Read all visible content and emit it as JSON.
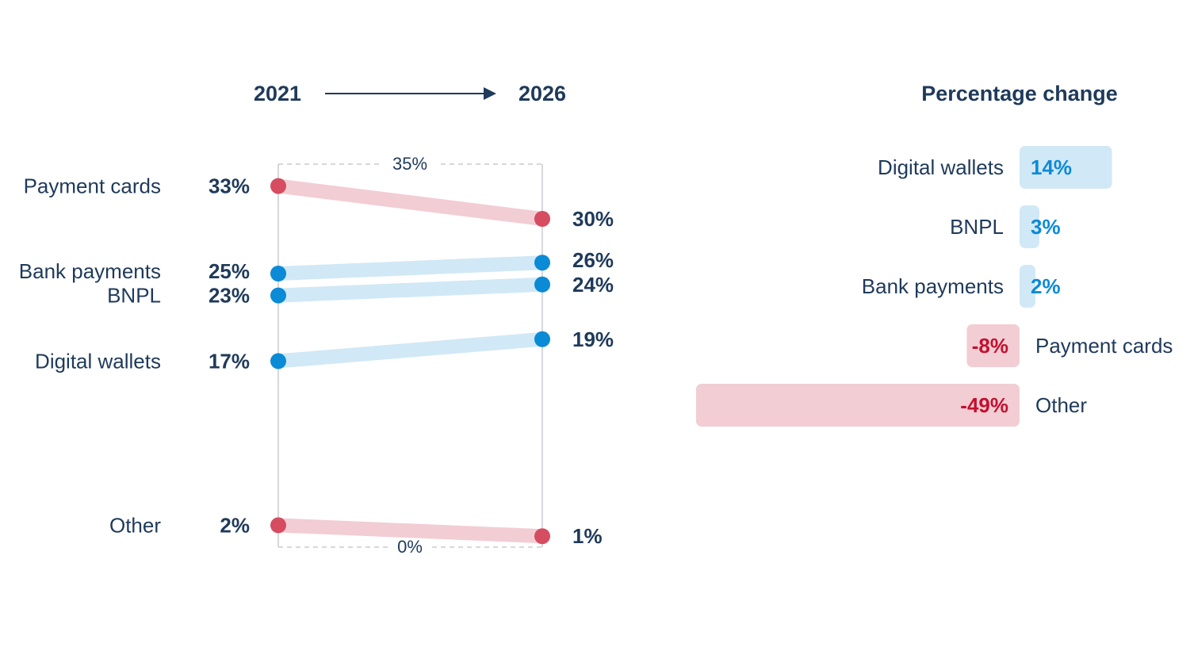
{
  "header": {
    "start_year": "2021",
    "end_year": "2026",
    "change_title": "Percentage change"
  },
  "colors": {
    "decrease_dot": "#d64c61",
    "decrease_band": "#f2cdd4",
    "decrease_text": "#c3102f",
    "increase_dot": "#0b8ad6",
    "increase_band": "#d1e8f6",
    "increase_text": "#0b8ad6",
    "text": "#1f3a5a"
  },
  "chart_data": [
    {
      "type": "slope",
      "title": "",
      "x": [
        "2021",
        "2026"
      ],
      "ylim": [
        0,
        35
      ],
      "axis_top_label": "35%",
      "axis_bottom_label": "0%",
      "series": [
        {
          "name": "Payment cards",
          "start": 33,
          "end": 30,
          "start_label": "33%",
          "end_label": "30%",
          "trend": "down"
        },
        {
          "name": "Bank payments",
          "start": 25,
          "end": 26,
          "start_label": "25%",
          "end_label": "26%",
          "trend": "up"
        },
        {
          "name": "BNPL",
          "start": 23,
          "end": 24,
          "start_label": "23%",
          "end_label": "24%",
          "trend": "up"
        },
        {
          "name": "Digital wallets",
          "start": 17,
          "end": 19,
          "start_label": "17%",
          "end_label": "19%",
          "trend": "up"
        },
        {
          "name": "Other",
          "start": 2,
          "end": 1,
          "start_label": "2%",
          "end_label": "1%",
          "trend": "down"
        }
      ]
    },
    {
      "type": "bar",
      "orientation": "horizontal",
      "title": "Percentage change",
      "categories": [
        "Digital wallets",
        "BNPL",
        "Bank payments",
        "Payment cards",
        "Other"
      ],
      "values": [
        14,
        3,
        2,
        -8,
        -49
      ],
      "value_labels": [
        "14%",
        "3%",
        "2%",
        "-8%",
        "-49%"
      ]
    }
  ]
}
